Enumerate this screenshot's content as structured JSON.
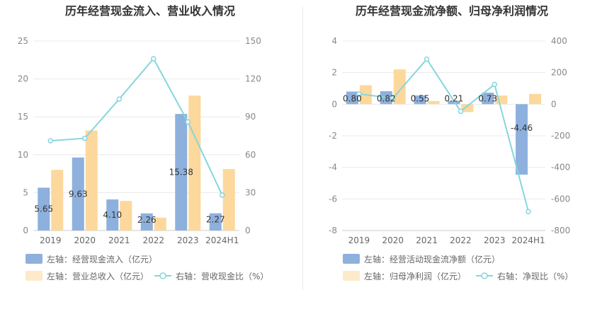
{
  "colors": {
    "bar_blue": "#8eb0dd",
    "bar_orange": "#fcd89c",
    "line_cyan": "#86d6dd",
    "grid": "#e9e9ee",
    "axis": "#cccccc"
  },
  "chart_data": [
    {
      "type": "bar",
      "title": "历年经营现金流入、营业收入情况",
      "categories": [
        "2019",
        "2020",
        "2021",
        "2022",
        "2023",
        "2024H1"
      ],
      "left_axis": {
        "ticks": [
          "0",
          "5",
          "10",
          "15",
          "20",
          "25"
        ],
        "range": [
          0,
          25
        ]
      },
      "right_axis": {
        "ticks": [
          "0",
          "30",
          "60",
          "90",
          "120",
          "150"
        ],
        "range": [
          0,
          150
        ]
      },
      "series": [
        {
          "name": "左轴：经营现金流入（亿元）",
          "type": "bar",
          "axis": "left",
          "color": "#8eb0dd",
          "values": [
            5.65,
            9.63,
            4.1,
            2.26,
            15.38,
            2.27
          ],
          "labels": [
            "5.65",
            "9.63",
            "4.10",
            "2.26",
            "15.38",
            "2.27"
          ]
        },
        {
          "name": "左轴：营业总收入（亿元）",
          "type": "bar",
          "axis": "left",
          "color": "#fcd89c",
          "values": [
            8.0,
            13.2,
            3.9,
            1.7,
            17.8,
            8.1
          ]
        },
        {
          "name": "右轴：营收现金比（%）",
          "type": "line",
          "axis": "right",
          "color": "#86d6dd",
          "values": [
            71,
            73,
            104,
            136,
            86,
            28
          ]
        }
      ]
    },
    {
      "type": "bar",
      "title": "历年经营现金流净额、归母净利润情况",
      "categories": [
        "2019",
        "2020",
        "2021",
        "2022",
        "2023",
        "2024H1"
      ],
      "left_axis": {
        "ticks": [
          "-8",
          "-6",
          "-4",
          "-2",
          "0",
          "2",
          "4"
        ],
        "range": [
          -8,
          4
        ]
      },
      "right_axis": {
        "ticks": [
          "-800",
          "-600",
          "-400",
          "-200",
          "0",
          "200",
          "400"
        ],
        "range": [
          -800,
          400
        ]
      },
      "series": [
        {
          "name": "左轴：经营活动现金流净额（亿元）",
          "type": "bar",
          "axis": "left",
          "color": "#8eb0dd",
          "values": [
            0.8,
            0.82,
            0.55,
            0.21,
            0.73,
            -4.46
          ],
          "labels": [
            "0.80",
            "0.82",
            "0.55",
            "0.21",
            "0.73",
            "-4.46"
          ]
        },
        {
          "name": "左轴：归母净利润（亿元）",
          "type": "bar",
          "axis": "left",
          "color": "#fcd89c",
          "values": [
            1.2,
            2.2,
            0.2,
            -0.5,
            0.55,
            0.65
          ]
        },
        {
          "name": "右轴：净现比（%）",
          "type": "line",
          "axis": "right",
          "color": "#86d6dd",
          "values": [
            65,
            38,
            285,
            -45,
            125,
            -680
          ]
        }
      ]
    }
  ]
}
